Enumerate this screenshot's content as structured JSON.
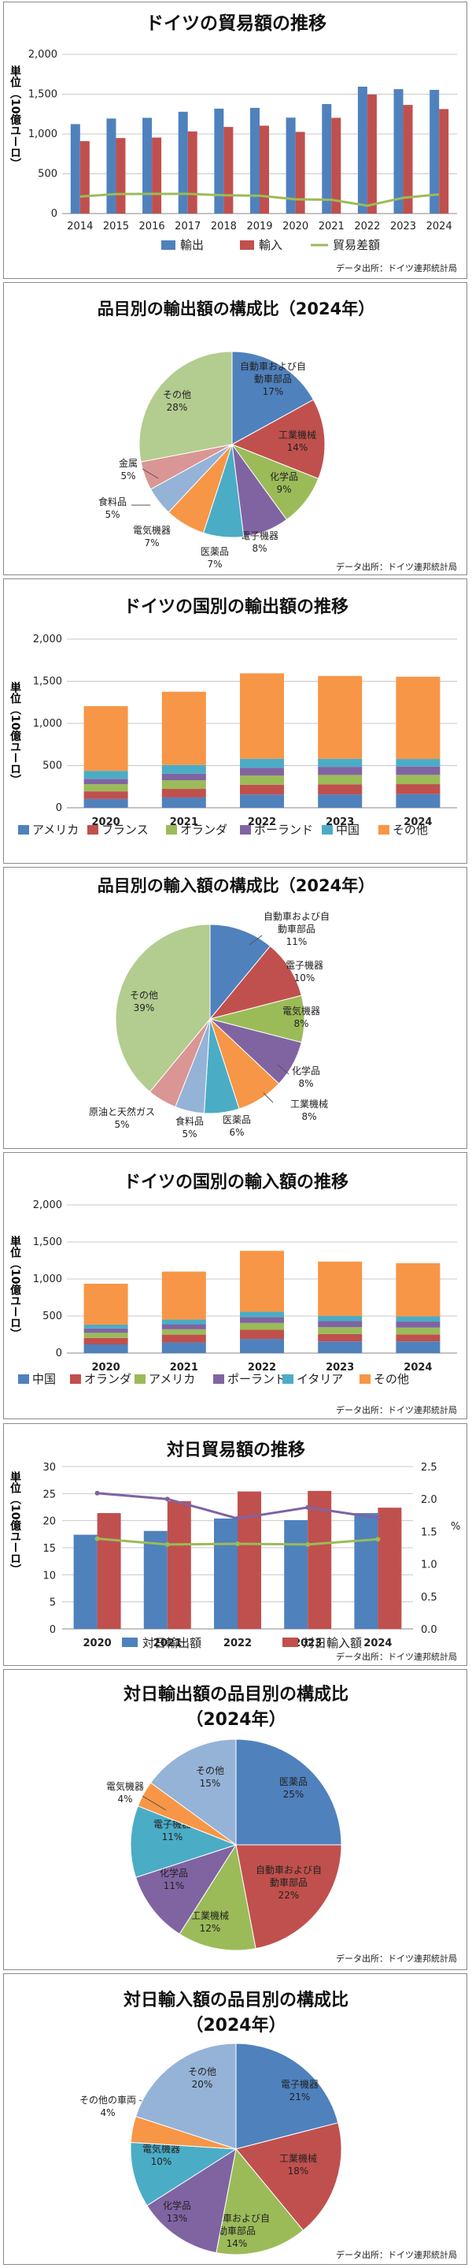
{
  "src": "データ出所：ドイツ連邦統計局",
  "charts": {
    "trade": {
      "title": "ドイツの貿易額の推移",
      "ylabel": "単位（10億ユーロ）",
      "yticks": [
        "2,000",
        "1,500",
        "1,000",
        "500",
        "0"
      ],
      "legend": [
        "輸出",
        "輸入",
        "貿易差額"
      ]
    },
    "expItems": {
      "title": "品目別の輸出額の構成比（2024年）"
    },
    "expCountries": {
      "title": "ドイツの国別の輸出額の推移",
      "ylabel": "単位（10億ユーロ）",
      "yticks": [
        "2,000",
        "1,500",
        "1,000",
        "500",
        "0"
      ],
      "legend": [
        "アメリカ",
        "フランス",
        "オランダ",
        "ポーランド",
        "中国",
        "その他"
      ]
    },
    "impItems": {
      "title": "品目別の輸入額の構成比（2024年）"
    },
    "impCountries": {
      "title": "ドイツの国別の輸入額の推移",
      "ylabel": "単位（10億ユーロ）",
      "yticks": [
        "2,000",
        "1,500",
        "1,000",
        "500",
        "0"
      ],
      "legend": [
        "中国",
        "オランダ",
        "アメリカ",
        "ポーランド",
        "イタリア",
        "その他"
      ]
    },
    "japan": {
      "title": "対日貿易額の推移",
      "ylabel": "単位（10億ユーロ）",
      "yticks": [
        "30",
        "25",
        "20",
        "15",
        "10",
        "5",
        "0"
      ],
      "y2ticks": [
        "2.5",
        "2.0",
        "1.5",
        "1.0",
        "0.5",
        "0.0"
      ],
      "y2label": "%",
      "legend": [
        "対日輸出額",
        "対日輸入額"
      ]
    },
    "jpExp": {
      "title1": "対日輸出額の品目別の構成比",
      "title2": "（2024年）"
    },
    "jpImp": {
      "title1": "対日輸入額の品目別の構成比",
      "title2": "（2024年）"
    }
  },
  "colors": {
    "blue": "#4f81bd",
    "red": "#c0504d",
    "green": "#9bbb59",
    "purple": "#8064a2",
    "teal": "#4bacc6",
    "orange": "#f79646",
    "lightblue": "#95b3d7",
    "pink": "#d99694",
    "sage": "#b3cc8f"
  },
  "chart_data": [
    {
      "type": "bar",
      "title": "ドイツの貿易額の推移",
      "ylabel": "単位（10億ユーロ）",
      "ylim": [
        0,
        2000
      ],
      "categories": [
        "2014",
        "2015",
        "2016",
        "2017",
        "2018",
        "2019",
        "2020",
        "2021",
        "2022",
        "2023",
        "2024"
      ],
      "series": [
        {
          "name": "輸出",
          "values": [
            1124,
            1194,
            1203,
            1279,
            1318,
            1328,
            1205,
            1376,
            1594,
            1563,
            1554
          ]
        },
        {
          "name": "輸入",
          "values": [
            910,
            949,
            955,
            1032,
            1088,
            1104,
            1026,
            1203,
            1495,
            1365,
            1313
          ]
        },
        {
          "name": "貿易差額",
          "type": "line",
          "values": [
            214,
            245,
            248,
            247,
            230,
            224,
            179,
            173,
            99,
            198,
            241
          ]
        }
      ]
    },
    {
      "type": "pie",
      "title": "品目別の輸出額の構成比（2024年）",
      "slices": [
        {
          "label": "自動車および自動車部品",
          "value": 17
        },
        {
          "label": "工業機械",
          "value": 14
        },
        {
          "label": "化学品",
          "value": 9
        },
        {
          "label": "電子機器",
          "value": 8
        },
        {
          "label": "医薬品",
          "value": 7
        },
        {
          "label": "電気機器",
          "value": 7
        },
        {
          "label": "食料品",
          "value": 5
        },
        {
          "label": "金属",
          "value": 5
        },
        {
          "label": "その他",
          "value": 28
        }
      ]
    },
    {
      "type": "bar",
      "stacked": true,
      "title": "ドイツの国別の輸出額の推移",
      "ylabel": "単位（10億ユーロ）",
      "ylim": [
        0,
        2000
      ],
      "categories": [
        "2020",
        "2021",
        "2022",
        "2023",
        "2024"
      ],
      "series": [
        {
          "name": "アメリカ",
          "values": [
            104,
            122,
            156,
            158,
            161
          ]
        },
        {
          "name": "フランス",
          "values": [
            91,
            102,
            116,
            120,
            119
          ]
        },
        {
          "name": "オランダ",
          "values": [
            84,
            101,
            111,
            111,
            110
          ]
        },
        {
          "name": "ポーランド",
          "values": [
            64,
            78,
            92,
            96,
            99
          ]
        },
        {
          "name": "中国",
          "values": [
            95,
            104,
            107,
            97,
            90
          ]
        },
        {
          "name": "その他",
          "values": [
            767,
            869,
            1012,
            981,
            975
          ]
        }
      ]
    },
    {
      "type": "pie",
      "title": "品目別の輸入額の構成比（2024年）",
      "slices": [
        {
          "label": "自動車および自動車部品",
          "value": 11
        },
        {
          "label": "電子機器",
          "value": 10
        },
        {
          "label": "電気機器",
          "value": 8
        },
        {
          "label": "化学品",
          "value": 8
        },
        {
          "label": "工業機械",
          "value": 8
        },
        {
          "label": "医薬品",
          "value": 6
        },
        {
          "label": "食料品",
          "value": 5
        },
        {
          "label": "原油と天然ガス",
          "value": 5
        },
        {
          "label": "その他",
          "value": 39
        }
      ]
    },
    {
      "type": "bar",
      "stacked": true,
      "title": "ドイツの国別の輸入額の推移",
      "ylabel": "単位（10億ユーロ）",
      "ylim": [
        0,
        2000
      ],
      "categories": [
        "2020",
        "2021",
        "2022",
        "2023",
        "2024"
      ],
      "series": [
        {
          "name": "中国",
          "values": [
            117,
            143,
            191,
            157,
            157
          ]
        },
        {
          "name": "オランダ",
          "values": [
            88,
            106,
            123,
            99,
            95
          ]
        },
        {
          "name": "アメリカ",
          "values": [
            68,
            72,
            92,
            94,
            92
          ]
        },
        {
          "name": "ポーランド",
          "values": [
            58,
            67,
            79,
            81,
            81
          ]
        },
        {
          "name": "イタリア",
          "values": [
            53,
            65,
            73,
            72,
            70
          ]
        },
        {
          "name": "その他",
          "values": [
            552,
            647,
            822,
            732,
            718
          ]
        }
      ]
    },
    {
      "type": "bar",
      "title": "対日貿易額の推移",
      "ylabel": "単位（10億ユーロ）",
      "ylim": [
        0,
        30
      ],
      "y2lim": [
        0,
        2.5
      ],
      "y2label": "%",
      "categories": [
        "2020",
        "2021",
        "2022",
        "2023",
        "2024"
      ],
      "series": [
        {
          "name": "対日輸出額",
          "values": [
            17.4,
            18.1,
            20.4,
            20.1,
            21.4
          ]
        },
        {
          "name": "対日輸入額",
          "values": [
            21.4,
            23.6,
            25.4,
            25.5,
            22.4
          ]
        },
        {
          "type": "line",
          "axis": "y2",
          "values": [
            1.39,
            1.3,
            1.31,
            1.3,
            1.38
          ]
        },
        {
          "type": "line",
          "axis": "y2",
          "values": [
            2.09,
            2.0,
            1.7,
            1.87,
            1.71
          ]
        }
      ]
    },
    {
      "type": "pie",
      "title": "対日輸出額の品目別の構成比（2024年）",
      "slices": [
        {
          "label": "医薬品",
          "value": 25
        },
        {
          "label": "自動車および自動車部品",
          "value": 22
        },
        {
          "label": "工業機械",
          "value": 12
        },
        {
          "label": "化学品",
          "value": 11
        },
        {
          "label": "電子機器",
          "value": 11
        },
        {
          "label": "電気機器",
          "value": 4
        },
        {
          "label": "その他",
          "value": 15
        }
      ]
    },
    {
      "type": "pie",
      "title": "対日輸入額の品目別の構成比（2024年）",
      "slices": [
        {
          "label": "電子機器",
          "value": 21
        },
        {
          "label": "工業機械",
          "value": 18
        },
        {
          "label": "自動車および自動車部品",
          "value": 14
        },
        {
          "label": "化学品",
          "value": 13
        },
        {
          "label": "電気機器",
          "value": 10
        },
        {
          "label": "その他の車両",
          "value": 4
        },
        {
          "label": "その他",
          "value": 20
        }
      ]
    }
  ]
}
